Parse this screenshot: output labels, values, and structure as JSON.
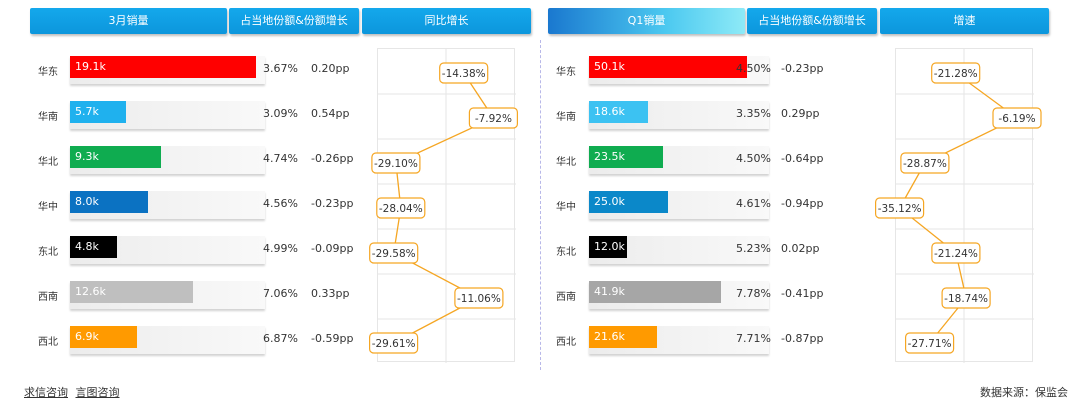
{
  "left": {
    "headers": {
      "sales": "3月销量",
      "share": "占当地份额&份额增长",
      "growth": "同比增长"
    },
    "rows": [
      {
        "region": "华东",
        "sales": "19.1k",
        "sales_val": 19.1,
        "color": "#ff0000",
        "share": "3.67%",
        "change": "0.20pp",
        "growth": "-14.38%",
        "growth_val": -14.38
      },
      {
        "region": "华南",
        "sales": "5.7k",
        "sales_val": 5.7,
        "color": "#1fb1ee",
        "share": "3.09%",
        "change": "0.54pp",
        "growth": "-7.92%",
        "growth_val": -7.92
      },
      {
        "region": "华北",
        "sales": "9.3k",
        "sales_val": 9.3,
        "color": "#0fac50",
        "share": "4.74%",
        "change": "-0.26pp",
        "growth": "-29.10%",
        "growth_val": -29.1
      },
      {
        "region": "华中",
        "sales": "8.0k",
        "sales_val": 8.0,
        "color": "#0b72c2",
        "share": "4.56%",
        "change": "-0.23pp",
        "growth": "-28.04%",
        "growth_val": -28.04
      },
      {
        "region": "东北",
        "sales": "4.8k",
        "sales_val": 4.8,
        "color": "#000000",
        "share": "4.99%",
        "change": "-0.09pp",
        "growth": "-29.58%",
        "growth_val": -29.58
      },
      {
        "region": "西南",
        "sales": "12.6k",
        "sales_val": 12.6,
        "color": "#bfbfbf",
        "share": "7.06%",
        "change": "0.33pp",
        "growth": "-11.06%",
        "growth_val": -11.06
      },
      {
        "region": "西北",
        "sales": "6.9k",
        "sales_val": 6.9,
        "color": "#ff9a00",
        "share": "6.87%",
        "change": "-0.59pp",
        "growth": "-29.61%",
        "growth_val": -29.61
      }
    ]
  },
  "right": {
    "headers": {
      "sales": "Q1销量",
      "share": "占当地份额&份额增长",
      "growth": "增速"
    },
    "rows": [
      {
        "region": "华东",
        "sales": "50.1k",
        "sales_val": 50.1,
        "color": "#ff0000",
        "share": "4.50%",
        "change": "-0.23pp",
        "growth": "-21.28%",
        "growth_val": -21.28
      },
      {
        "region": "华南",
        "sales": "18.6k",
        "sales_val": 18.6,
        "color": "#3cc2f2",
        "share": "3.35%",
        "change": "0.29pp",
        "growth": "-6.19%",
        "growth_val": -6.19
      },
      {
        "region": "华北",
        "sales": "23.5k",
        "sales_val": 23.5,
        "color": "#0fac50",
        "share": "4.50%",
        "change": "-0.64pp",
        "growth": "-28.87%",
        "growth_val": -28.87
      },
      {
        "region": "华中",
        "sales": "25.0k",
        "sales_val": 25.0,
        "color": "#0b88c9",
        "share": "4.61%",
        "change": "-0.94pp",
        "growth": "-35.12%",
        "growth_val": -35.12
      },
      {
        "region": "东北",
        "sales": "12.0k",
        "sales_val": 12.0,
        "color": "#000000",
        "share": "5.23%",
        "change": "0.02pp",
        "growth": "-21.24%",
        "growth_val": -21.24
      },
      {
        "region": "西南",
        "sales": "41.9k",
        "sales_val": 41.9,
        "color": "#a6a6a6",
        "share": "7.78%",
        "change": "-0.41pp",
        "growth": "-18.74%",
        "growth_val": -18.74
      },
      {
        "region": "西北",
        "sales": "21.6k",
        "sales_val": 21.6,
        "color": "#ff9a00",
        "share": "7.71%",
        "change": "-0.87pp",
        "growth": "-27.71%",
        "growth_val": -27.71
      }
    ]
  },
  "chart_data": [
    {
      "type": "bar",
      "title": "3月销量",
      "categories": [
        "华东",
        "华南",
        "华北",
        "华中",
        "东北",
        "西南",
        "西北"
      ],
      "values": [
        19.1,
        5.7,
        9.3,
        8.0,
        4.8,
        12.6,
        6.9
      ],
      "unit": "k",
      "xlim": [
        0,
        20
      ]
    },
    {
      "type": "line",
      "title": "同比增长",
      "categories": [
        "华东",
        "华南",
        "华北",
        "华中",
        "东北",
        "西南",
        "西北"
      ],
      "values": [
        -14.38,
        -7.92,
        -29.1,
        -28.04,
        -29.58,
        -11.06,
        -29.61
      ],
      "unit": "%",
      "xlim": [
        -33,
        -3
      ]
    },
    {
      "type": "bar",
      "title": "Q1销量",
      "categories": [
        "华东",
        "华南",
        "华北",
        "华中",
        "东北",
        "西南",
        "西北"
      ],
      "values": [
        50.1,
        18.6,
        23.5,
        25.0,
        12.0,
        41.9,
        21.6
      ],
      "unit": "k",
      "xlim": [
        0,
        57
      ]
    },
    {
      "type": "line",
      "title": "增速",
      "categories": [
        "华东",
        "华南",
        "华北",
        "华中",
        "东北",
        "西南",
        "西北"
      ],
      "values": [
        -21.28,
        -6.19,
        -28.87,
        -35.12,
        -21.24,
        -18.74,
        -27.71
      ],
      "unit": "%",
      "xlim": [
        -36,
        -2
      ]
    }
  ],
  "footer": {
    "link1": "求信咨询",
    "link2": "言图咨询",
    "source": "数据来源：保监会"
  }
}
